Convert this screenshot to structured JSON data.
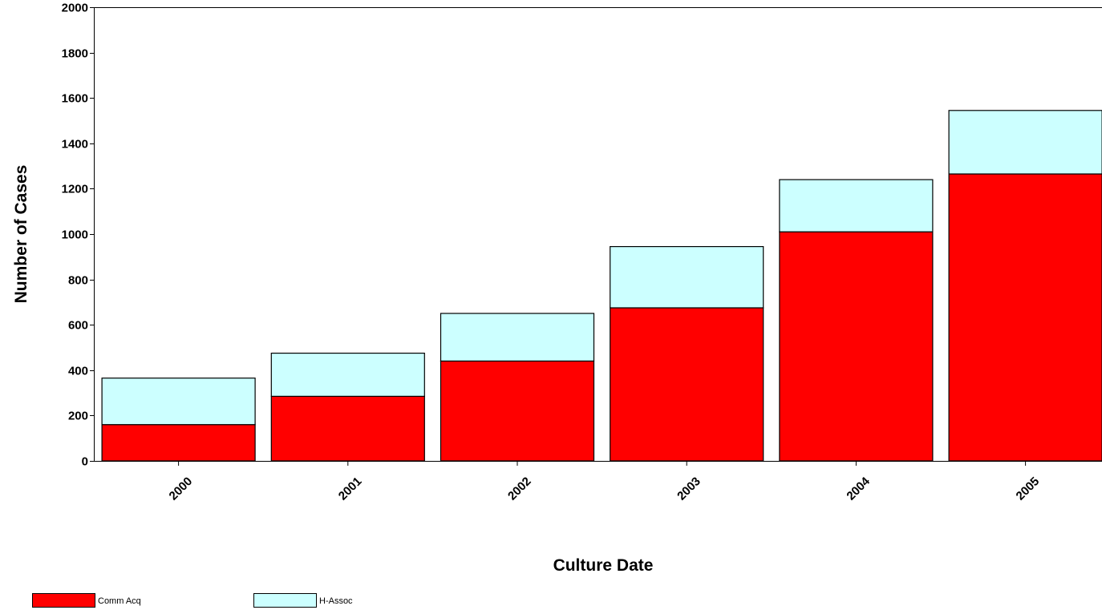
{
  "chart_data": {
    "type": "bar",
    "stacked": true,
    "title": "",
    "xlabel": "Culture Date",
    "ylabel": "Number of Cases",
    "categories": [
      "2000",
      "2001",
      "2002",
      "2003",
      "2004",
      "2005"
    ],
    "series": [
      {
        "name": "Comm Acq",
        "color": "#ff0000",
        "values": [
          160,
          285,
          440,
          675,
          1010,
          1265
        ]
      },
      {
        "name": "H-Assoc",
        "color": "#ccffff",
        "values": [
          205,
          190,
          210,
          270,
          230,
          280
        ]
      }
    ],
    "ylim": [
      0,
      2000
    ],
    "yticks": [
      0,
      200,
      400,
      600,
      800,
      1000,
      1200,
      1400,
      1600,
      1800,
      2000
    ],
    "grid": false,
    "legend": "bottom-left"
  }
}
